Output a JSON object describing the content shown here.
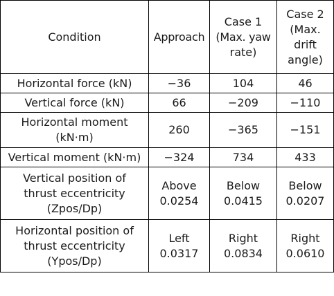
{
  "header": {
    "condition": "Condition",
    "approach": "Approach",
    "case1": [
      "Case 1",
      "(Max. yaw",
      "rate)"
    ],
    "case2": [
      "Case 2",
      "(Max.",
      "drift",
      "angle)"
    ]
  },
  "rows": [
    {
      "label": [
        "Horizontal force (kN)"
      ],
      "approach": [
        "−36"
      ],
      "case1": [
        "104"
      ],
      "case2": [
        "46"
      ]
    },
    {
      "label": [
        "Vertical force (kN)"
      ],
      "approach": [
        "66"
      ],
      "case1": [
        "−209"
      ],
      "case2": [
        "−110"
      ]
    },
    {
      "label": [
        "Horizontal moment",
        "(kN·m)"
      ],
      "approach": [
        "260"
      ],
      "case1": [
        "−365"
      ],
      "case2": [
        "−151"
      ]
    },
    {
      "label": [
        "Vertical moment (kN·m)"
      ],
      "approach": [
        "−324"
      ],
      "case1": [
        "734"
      ],
      "case2": [
        "433"
      ]
    },
    {
      "label": [
        "Vertical position of",
        "thrust eccentricity",
        "(Zpos/Dp)"
      ],
      "approach": [
        "Above",
        "0.0254"
      ],
      "case1": [
        "Below",
        "0.0415"
      ],
      "case2": [
        "Below",
        "0.0207"
      ]
    },
    {
      "label": [
        "Horizontal position of",
        "thrust eccentricity",
        "(Ypos/Dp)"
      ],
      "approach": [
        "Left",
        "0.0317"
      ],
      "case1": [
        "Right",
        "0.0834"
      ],
      "case2": [
        "Right",
        "0.0610"
      ]
    }
  ]
}
